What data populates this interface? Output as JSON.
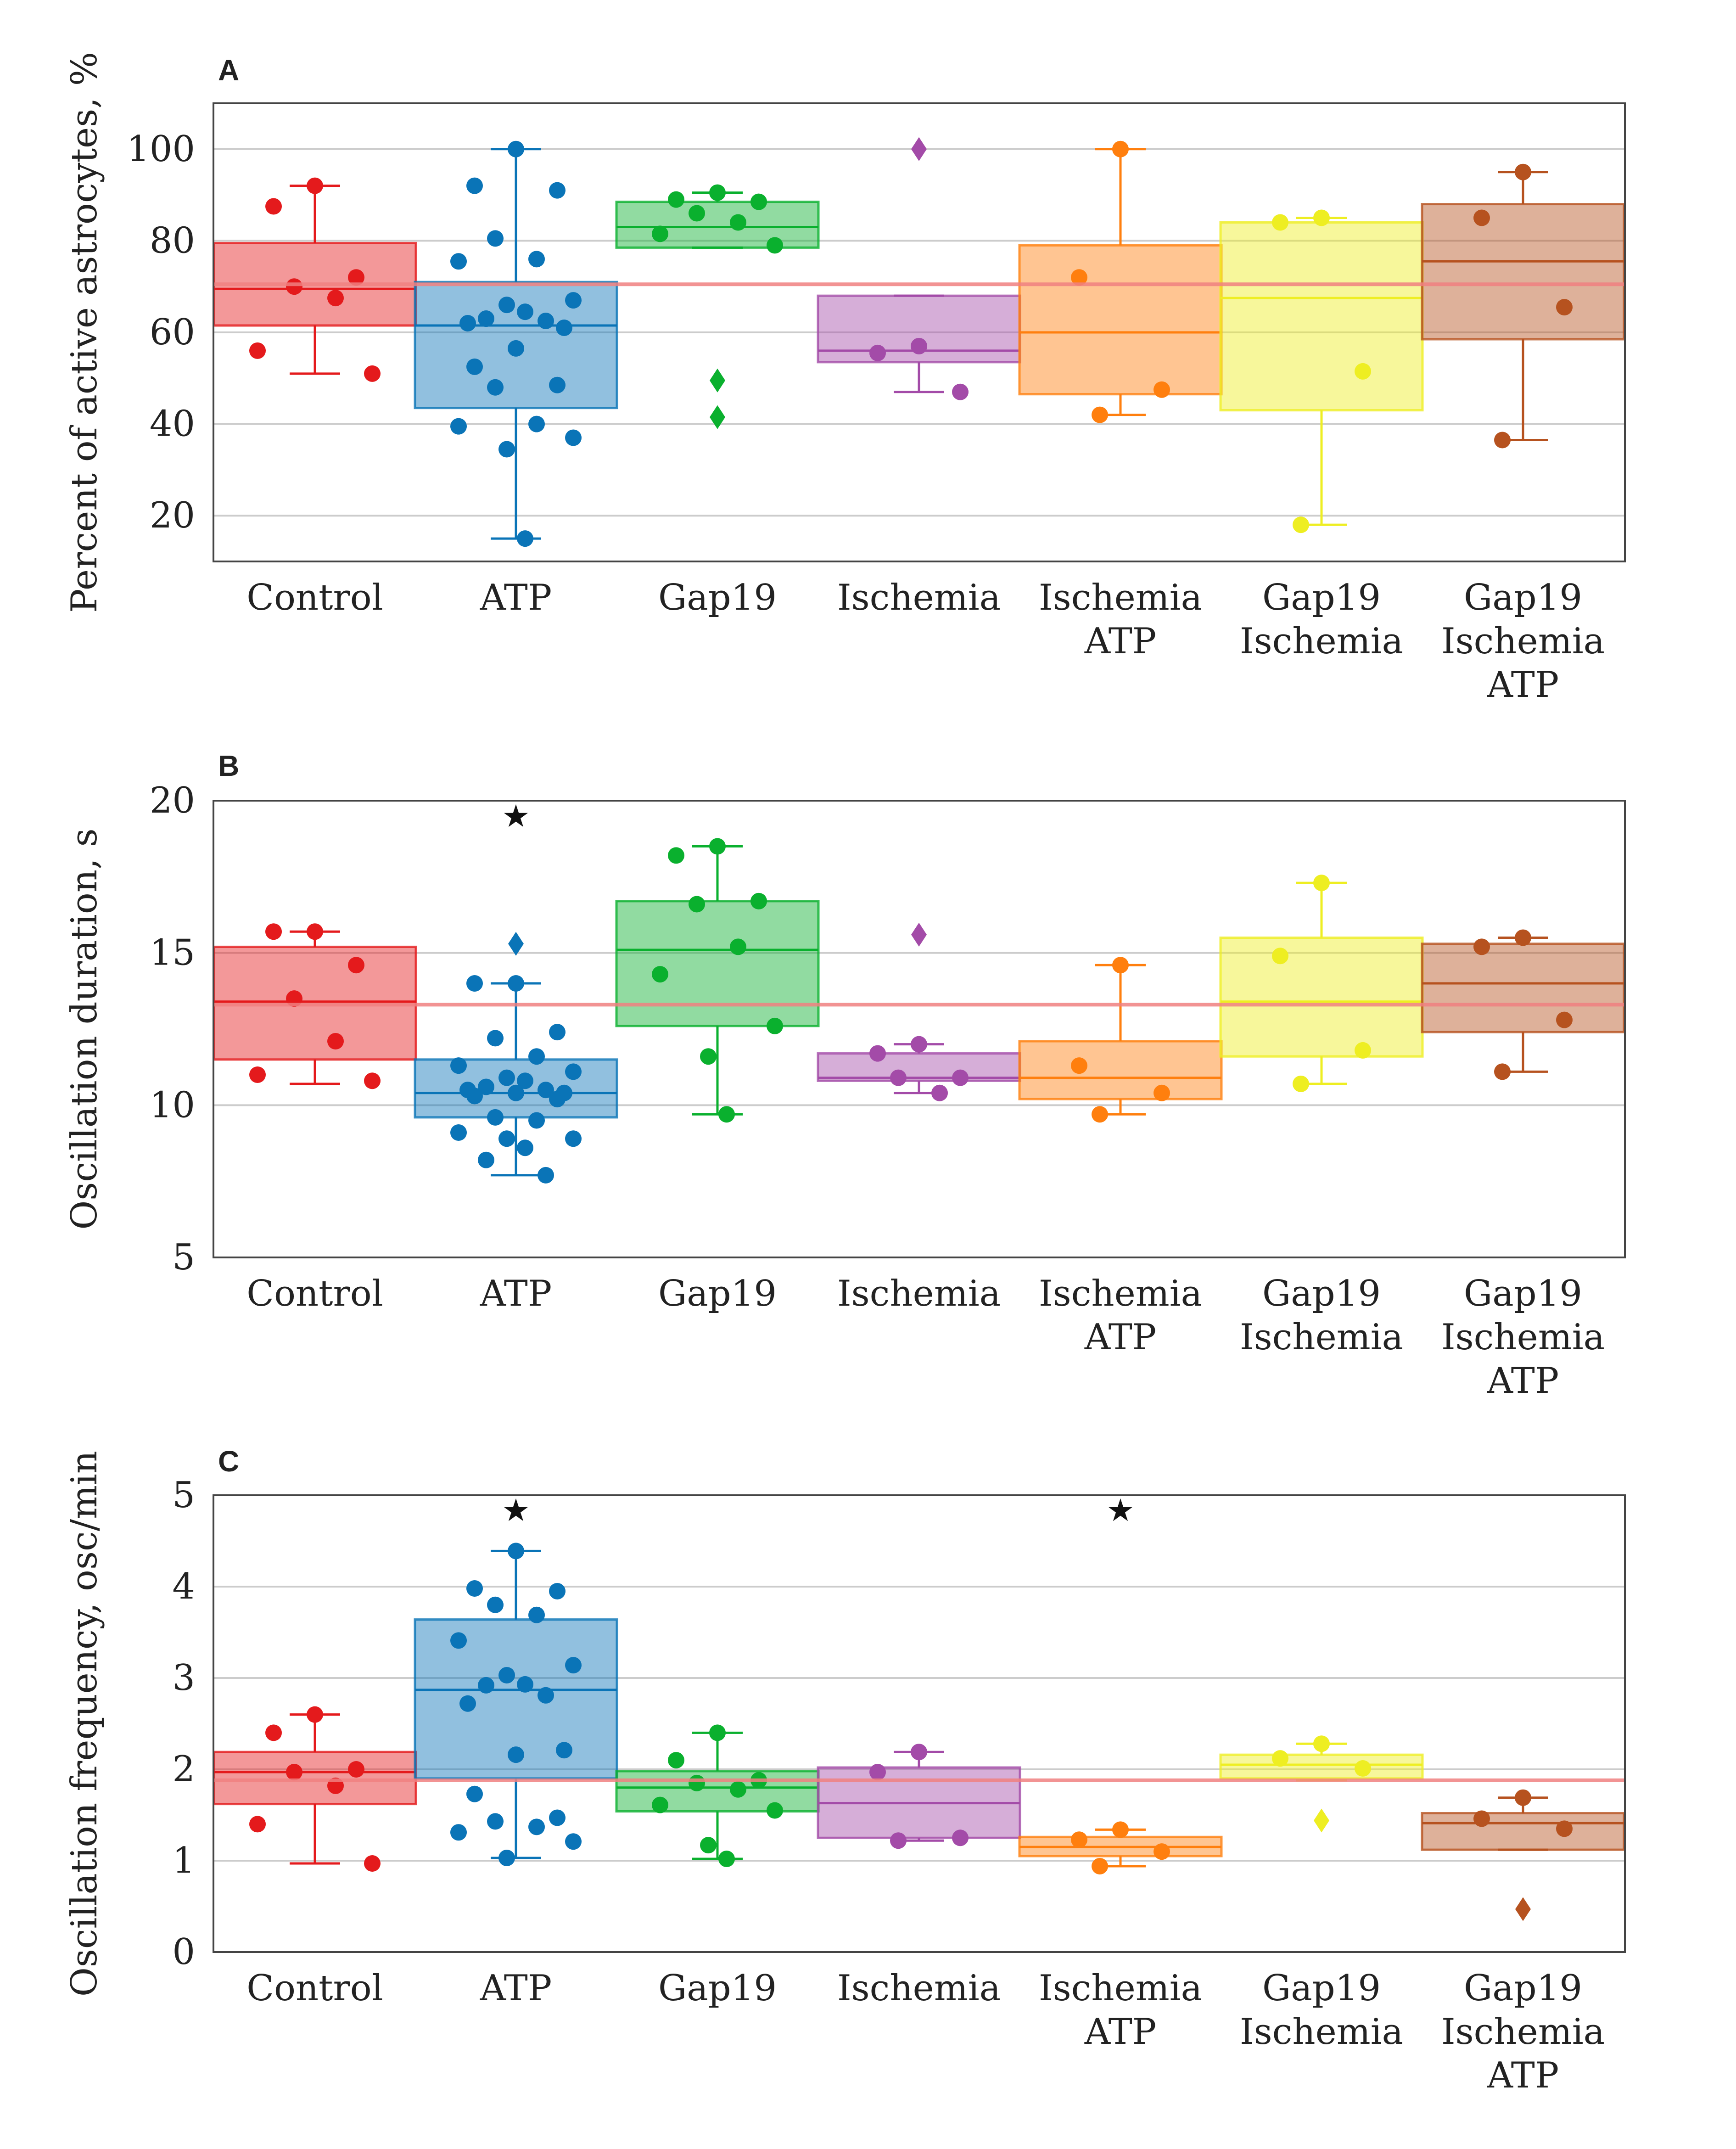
{
  "chart_data": [
    {
      "panel": "A",
      "type": "box",
      "ylabel": "Percent of active astrocytes, %",
      "ylim": [
        10,
        110
      ],
      "yticks": [
        20,
        40,
        60,
        80,
        100
      ],
      "reference_line": 70.5,
      "groups": [
        {
          "label": [
            "Control"
          ],
          "color": "#e41a1c",
          "q1": 61.5,
          "median": 69.5,
          "q3": 79.5,
          "whisker_low": 51,
          "whisker_high": 92,
          "points": [
            92,
            87.5,
            72,
            70,
            67.5,
            56,
            51
          ],
          "outliers": []
        },
        {
          "label": [
            "ATP"
          ],
          "color": "#0a74b7",
          "q1": 43.5,
          "median": 61.5,
          "q3": 71,
          "whisker_low": 15,
          "whisker_high": 100,
          "points": [
            100,
            92,
            91,
            80.5,
            76,
            75.5,
            67,
            66,
            64.5,
            63,
            62.5,
            62,
            61,
            56.5,
            52.5,
            48.5,
            48,
            40,
            39.5,
            37,
            34.5,
            15
          ],
          "outliers": []
        },
        {
          "label": [
            "Gap19"
          ],
          "color": "#0ab02e",
          "q1": 78.5,
          "median": 83,
          "q3": 88.5,
          "whisker_low": 78.5,
          "whisker_high": 90.5,
          "points": [
            90.5,
            89,
            88.5,
            86,
            84,
            81.5,
            79
          ],
          "outliers": [
            49.5,
            41.5
          ]
        },
        {
          "label": [
            "Ischemia"
          ],
          "color": "#a34ba8",
          "q1": 53.5,
          "median": 56,
          "q3": 68,
          "whisker_low": 47,
          "whisker_high": 68,
          "points": [
            57,
            55.5,
            47
          ],
          "outliers": [
            100
          ]
        },
        {
          "label": [
            "Ischemia",
            "ATP"
          ],
          "color": "#ff7f0e",
          "q1": 46.5,
          "median": 60,
          "q3": 79,
          "whisker_low": 42,
          "whisker_high": 100,
          "points": [
            100,
            72,
            47.5,
            42
          ],
          "outliers": []
        },
        {
          "label": [
            "Gap19",
            "Ischemia"
          ],
          "color": "#eeee22",
          "q1": 43,
          "median": 67.5,
          "q3": 84,
          "whisker_low": 18,
          "whisker_high": 85,
          "points": [
            85,
            84,
            51.5,
            18
          ],
          "outliers": []
        },
        {
          "label": [
            "Gap19",
            "Ischemia",
            "ATP"
          ],
          "color": "#b6521f",
          "q1": 58.5,
          "median": 75.5,
          "q3": 88,
          "whisker_low": 36.5,
          "whisker_high": 95,
          "points": [
            95,
            85,
            65.5,
            36.5
          ],
          "outliers": []
        }
      ],
      "markers": []
    },
    {
      "panel": "B",
      "type": "box",
      "ylabel": "Oscillation duration, s",
      "ylim": [
        5,
        20
      ],
      "yticks": [
        5,
        10,
        15,
        20
      ],
      "reference_line": 13.3,
      "groups": [
        {
          "label": [
            "Control"
          ],
          "color": "#e41a1c",
          "q1": 11.5,
          "median": 13.4,
          "q3": 15.2,
          "whisker_low": 10.7,
          "whisker_high": 15.7,
          "points": [
            15.7,
            15.7,
            14.6,
            13.5,
            12.1,
            11,
            10.8
          ],
          "outliers": []
        },
        {
          "label": [
            "ATP"
          ],
          "color": "#0a74b7",
          "q1": 9.6,
          "median": 10.4,
          "q3": 11.5,
          "whisker_low": 7.7,
          "whisker_high": 14,
          "points": [
            14,
            14,
            12.4,
            12.2,
            11.6,
            11.3,
            11.1,
            10.9,
            10.8,
            10.6,
            10.5,
            10.5,
            10.4,
            10.4,
            10.3,
            10.2,
            9.6,
            9.5,
            9.1,
            8.9,
            8.9,
            8.6,
            8.2,
            7.7
          ],
          "outliers": [
            15.3
          ]
        },
        {
          "label": [
            "Gap19"
          ],
          "color": "#0ab02e",
          "q1": 12.6,
          "median": 15.1,
          "q3": 16.7,
          "whisker_low": 9.7,
          "whisker_high": 18.5,
          "points": [
            18.5,
            18.2,
            16.7,
            16.6,
            15.2,
            14.3,
            12.6,
            11.6,
            9.7
          ],
          "outliers": []
        },
        {
          "label": [
            "Ischemia"
          ],
          "color": "#a34ba8",
          "q1": 10.8,
          "median": 10.9,
          "q3": 11.7,
          "whisker_low": 10.4,
          "whisker_high": 12,
          "points": [
            12,
            11.7,
            10.9,
            10.9,
            10.4
          ],
          "outliers": [
            15.6
          ]
        },
        {
          "label": [
            "Ischemia",
            "ATP"
          ],
          "color": "#ff7f0e",
          "q1": 10.2,
          "median": 10.9,
          "q3": 12.1,
          "whisker_low": 9.7,
          "whisker_high": 14.6,
          "points": [
            14.6,
            11.3,
            10.4,
            9.7
          ],
          "outliers": []
        },
        {
          "label": [
            "Gap19",
            "Ischemia"
          ],
          "color": "#eeee22",
          "q1": 11.6,
          "median": 13.4,
          "q3": 15.5,
          "whisker_low": 10.7,
          "whisker_high": 17.3,
          "points": [
            17.3,
            14.9,
            11.8,
            10.7
          ],
          "outliers": []
        },
        {
          "label": [
            "Gap19",
            "Ischemia",
            "ATP"
          ],
          "color": "#b6521f",
          "q1": 12.4,
          "median": 14,
          "q3": 15.3,
          "whisker_low": 11.1,
          "whisker_high": 15.5,
          "points": [
            15.5,
            15.2,
            12.8,
            11.1
          ],
          "outliers": []
        }
      ],
      "markers": [
        {
          "group": 1,
          "value": 19.5,
          "symbol": "★"
        }
      ]
    },
    {
      "panel": "C",
      "type": "box",
      "ylabel": "Oscillation frequency, osc/min",
      "ylim": [
        0,
        5
      ],
      "yticks": [
        0,
        1,
        2,
        3,
        4,
        5
      ],
      "reference_line": 1.88,
      "groups": [
        {
          "label": [
            "Control"
          ],
          "color": "#e41a1c",
          "q1": 1.62,
          "median": 1.97,
          "q3": 2.19,
          "whisker_low": 0.97,
          "whisker_high": 2.6,
          "points": [
            2.6,
            2.4,
            2,
            1.97,
            1.82,
            1.4,
            0.97
          ],
          "outliers": []
        },
        {
          "label": [
            "ATP"
          ],
          "color": "#0a74b7",
          "q1": 1.9,
          "median": 2.87,
          "q3": 3.64,
          "whisker_low": 1.03,
          "whisker_high": 4.39,
          "points": [
            4.39,
            3.98,
            3.95,
            3.8,
            3.69,
            3.41,
            3.14,
            3.03,
            2.93,
            2.92,
            2.81,
            2.72,
            2.21,
            2.16,
            1.73,
            1.47,
            1.43,
            1.37,
            1.31,
            1.21,
            1.03
          ],
          "outliers": []
        },
        {
          "label": [
            "Gap19"
          ],
          "color": "#0ab02e",
          "q1": 1.54,
          "median": 1.8,
          "q3": 1.98,
          "whisker_low": 1.02,
          "whisker_high": 2.4,
          "points": [
            2.4,
            2.1,
            1.88,
            1.85,
            1.78,
            1.61,
            1.55,
            1.17,
            1.02
          ],
          "outliers": []
        },
        {
          "label": [
            "Ischemia"
          ],
          "color": "#a34ba8",
          "q1": 1.25,
          "median": 1.63,
          "q3": 2.02,
          "whisker_low": 1.22,
          "whisker_high": 2.19,
          "points": [
            2.19,
            1.97,
            1.25,
            1.22
          ],
          "outliers": []
        },
        {
          "label": [
            "Ischemia",
            "ATP"
          ],
          "color": "#ff7f0e",
          "q1": 1.05,
          "median": 1.15,
          "q3": 1.26,
          "whisker_low": 0.94,
          "whisker_high": 1.34,
          "points": [
            1.34,
            1.23,
            1.1,
            0.94
          ],
          "outliers": []
        },
        {
          "label": [
            "Gap19",
            "Ischemia"
          ],
          "color": "#eeee22",
          "q1": 1.9,
          "median": 2.05,
          "q3": 2.16,
          "whisker_low": 1.88,
          "whisker_high": 2.28,
          "points": [
            2.28,
            2.12,
            2.01
          ],
          "outliers": [
            1.44
          ]
        },
        {
          "label": [
            "Gap19",
            "Ischemia",
            "ATP"
          ],
          "color": "#b6521f",
          "q1": 1.12,
          "median": 1.41,
          "q3": 1.52,
          "whisker_low": 1.12,
          "whisker_high": 1.69,
          "points": [
            1.69,
            1.46,
            1.35
          ],
          "outliers": [
            0.47
          ]
        }
      ],
      "markers": [
        {
          "group": 1,
          "value": 4.84,
          "symbol": "★"
        },
        {
          "group": 4,
          "value": 4.84,
          "symbol": "★"
        }
      ]
    }
  ],
  "reference_line_color": "#f08080",
  "point_style": {
    "mean_line_color": "#f08080"
  }
}
